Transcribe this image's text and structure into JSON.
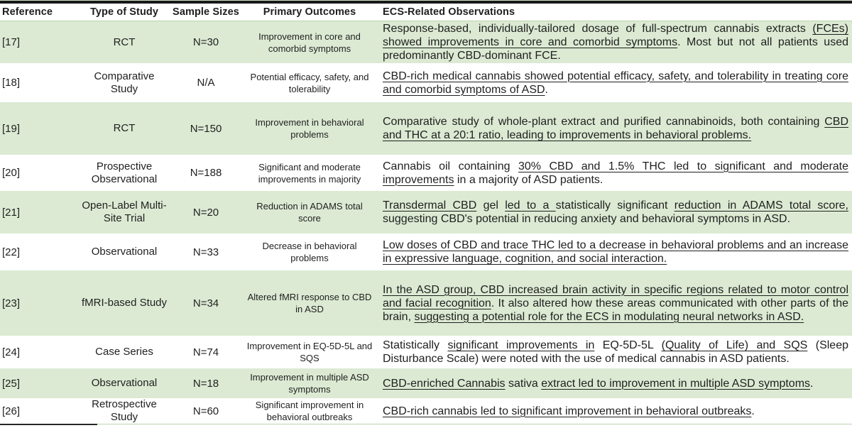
{
  "header": {
    "columns": [
      "Reference",
      "Type of Study",
      "Sample Sizes",
      "Primary Outcomes",
      "ECS-Related Observations"
    ]
  },
  "rows": [
    {
      "reference": "[17]",
      "study_type": "RCT",
      "sample_size": "N=30",
      "primary_outcome": "Improvement in core and comorbid symptoms",
      "observation": [
        {
          "t": "Response-based, individually-tailored dosage of full-spectrum cannabis extracts ",
          "u": false
        },
        {
          "t": "(FCEs) showed improvements in core and comorbid symptoms",
          "u": true
        },
        {
          "t": ". Most but not all patients used predominantly CBD-dominant FCE.",
          "u": false
        }
      ]
    },
    {
      "reference": "[18]",
      "study_type": "Comparative Study",
      "sample_size": "N/A",
      "primary_outcome": "Potential efficacy, safety, and tolerability",
      "observation": [
        {
          "t": "CBD-rich medical cannabis showed potential efficacy, safety, and tolerability in treating core and comorbid symptoms of ASD",
          "u": true
        },
        {
          "t": ".",
          "u": false
        }
      ]
    },
    {
      "reference": "[19]",
      "study_type": "RCT",
      "sample_size": "N=150",
      "primary_outcome": "Improvement in behavioral problems",
      "observation": [
        {
          "t": "Comparative study of whole-plant extract and purified cannabinoids, both containing ",
          "u": false
        },
        {
          "t": "CBD and THC at a 20:1 ratio, leading to improvements in behavioral problems.",
          "u": true
        }
      ]
    },
    {
      "reference": "[20]",
      "study_type": "Prospective Observational",
      "sample_size": "N=188",
      "primary_outcome": "Significant and moderate improvements in majority",
      "observation": [
        {
          "t": "Cannabis oil containing ",
          "u": false
        },
        {
          "t": "30% CBD and 1.5% THC led to significant and moderate improvements",
          "u": true
        },
        {
          "t": " in a majority of ASD patients.",
          "u": false
        }
      ]
    },
    {
      "reference": "[21]",
      "study_type": "Open-Label Multi-Site Trial",
      "sample_size": "N=20",
      "primary_outcome": "Reduction in ADAMS total score",
      "observation": [
        {
          "t": "Transdermal CBD",
          "u": true
        },
        {
          "t": " gel ",
          "u": false
        },
        {
          "t": "led to a ",
          "u": true
        },
        {
          "t": "statistically significant ",
          "u": false
        },
        {
          "t": "reduction in ADAMS total score,",
          "u": true
        },
        {
          "t": " suggesting CBD's potential in reducing anxiety and behavioral symptoms in ASD.",
          "u": false
        }
      ]
    },
    {
      "reference": "[22]",
      "study_type": "Observational",
      "sample_size": "N=33",
      "primary_outcome": "Decrease in behavioral problems",
      "observation": [
        {
          "t": "Low doses of CBD and trace THC led to a decrease in behavioral problems and an increase in expressive language, cognition, and social interaction.",
          "u": true
        }
      ]
    },
    {
      "reference": "[23]",
      "study_type": "fMRI-based Study",
      "sample_size": "N=34",
      "primary_outcome": "Altered fMRI response to CBD in ASD",
      "observation": [
        {
          "t": "In the ASD group, CBD increased brain activity in specific regions related to motor control and facial recognition",
          "u": true
        },
        {
          "t": ". It also altered how these areas communicated with other parts of the brain, ",
          "u": false
        },
        {
          "t": "suggesting a potential role for the ECS in modulating neural networks in ASD.",
          "u": true
        }
      ]
    },
    {
      "reference": "[24]",
      "study_type": "Case Series",
      "sample_size": "N=74",
      "primary_outcome": "Improvement in EQ-5D-5L and SQS",
      "observation": [
        {
          "t": "Statistically ",
          "u": false
        },
        {
          "t": "significant improvements in",
          "u": true
        },
        {
          "t": " EQ-5D-5L ",
          "u": false
        },
        {
          "t": "(Quality of Life) and SQS",
          "u": true
        },
        {
          "t": " (Sleep Disturbance Scale) were noted with the use of medical cannabis in ASD patients.",
          "u": false
        }
      ]
    },
    {
      "reference": "[25]",
      "study_type": "Observational",
      "sample_size": "N=18",
      "primary_outcome": "Improvement in multiple ASD symptoms",
      "observation": [
        {
          "t": "CBD-enriched Cannabis",
          "u": true
        },
        {
          "t": " sativa ",
          "u": false
        },
        {
          "t": "extract led to improvement in multiple ASD symptoms",
          "u": true
        },
        {
          "t": ".",
          "u": false
        }
      ]
    },
    {
      "reference": "[26]",
      "study_type": "Retrospective Study",
      "sample_size": "N=60",
      "primary_outcome": "Significant improvement in behavioral outbreaks",
      "observation": [
        {
          "t": "CBD-rich cannabis led to significant improvement in behavioral outbreaks",
          "u": true
        },
        {
          "t": ".",
          "u": false
        }
      ]
    }
  ],
  "colors": {
    "row_highlight": "#dcead3",
    "top_border": "#191919",
    "separator_green": "#bcd3ad",
    "top_hairline": "#cfe3c2",
    "partial_rule": "#262626",
    "text": "#1f1f1f"
  }
}
